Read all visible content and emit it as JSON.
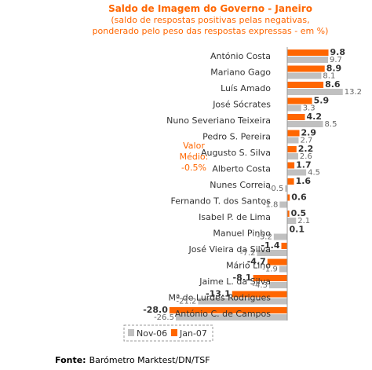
{
  "chart_data": {
    "type": "bar",
    "orientation": "horizontal",
    "title": "Saldo de Imagem do Governo - Janeiro",
    "subtitle_line1": "(saldo de respostas positivas pelas negativas,",
    "subtitle_line2": "ponderado pelo peso das respostas expressas - em %)",
    "categories": [
      "António Costa",
      "Mariano Gago",
      "Luís Amado",
      "José Sócrates",
      "Nuno Severiano Teixeira",
      "Pedro S. Pereira",
      "Augusto S. Silva",
      "Alberto Costa",
      "Nunes Correia",
      "Fernando T. dos Santos",
      "Isabel P. de Lima",
      "Manuel Pinho",
      "José Vieira da Silva",
      "Mário Lino",
      "Jaime L. da Silva",
      "Mª de Lurdes Rodrigues",
      "António C. de Campos"
    ],
    "series": [
      {
        "name": "Jan-07",
        "color": "#ff6600",
        "values": [
          9.8,
          8.9,
          8.6,
          5.9,
          4.2,
          2.9,
          2.2,
          1.7,
          1.6,
          0.6,
          0.5,
          0.1,
          -1.4,
          -4.7,
          -8.1,
          -13.1,
          -28.0
        ],
        "labels": [
          "9.8",
          "8.9",
          "8.6",
          "5.9",
          "4.2",
          "2.9",
          "2.2",
          "1.7",
          "1.6",
          "0.6",
          "0.5",
          "0.1",
          "-1.4",
          "-4.7",
          "-8.1",
          "-13.1",
          "-28.0"
        ]
      },
      {
        "name": "Nov-06",
        "color": "#c0c0c0",
        "values": [
          9.7,
          8.1,
          13.2,
          3.3,
          8.5,
          2.7,
          2.6,
          4.5,
          -0.5,
          -1.8,
          2.1,
          -3.2,
          -7.2,
          -1.9,
          -4.3,
          -21.2,
          -26.5
        ],
        "labels": [
          "9.7",
          "8.1",
          "13.2",
          "3.3",
          "8.5",
          "2.7",
          "2.6",
          "4.5",
          "-0.5",
          "-1.8",
          "2.1",
          "-3.2",
          "-7.2",
          "-1.9",
          "-4.3",
          "-21.2",
          "-26.5"
        ]
      }
    ],
    "xlim": [
      -30,
      14
    ],
    "annotation": {
      "line1": "Valor",
      "line2": "Médio:",
      "line3": "-0.5%"
    },
    "legend": {
      "placement": "bottom",
      "items": [
        "Nov-06",
        "Jan-07"
      ]
    },
    "grid": false
  },
  "source": {
    "label": "Fonte:",
    "text": "Barómetro Marktest/DN/TSF"
  }
}
